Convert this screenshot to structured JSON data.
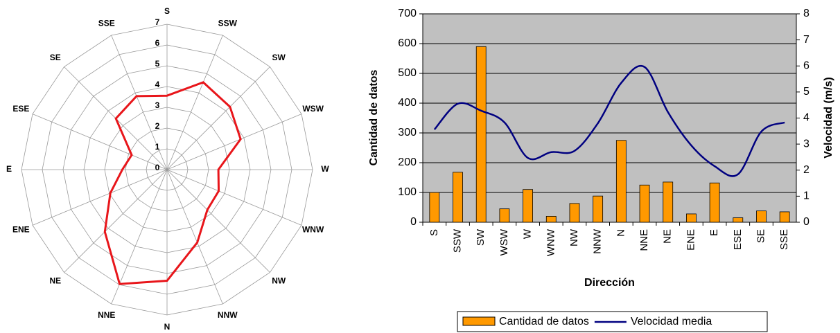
{
  "chart_data": [
    {
      "type": "radar",
      "categories": [
        "S",
        "SSW",
        "SW",
        "WSW",
        "W",
        "WNW",
        "NW",
        "NNW",
        "N",
        "NNE",
        "NE",
        "ENE",
        "E",
        "ESE",
        "SE",
        "SSE"
      ],
      "values": [
        3.56,
        4.55,
        4.28,
        3.83,
        2.47,
        2.69,
        2.74,
        3.8,
        5.35,
        5.96,
        4.23,
        2.95,
        2.15,
        1.84,
        3.48,
        3.83
      ],
      "color": "#e8161b",
      "rlim": [
        0,
        7
      ],
      "rticks": [
        0,
        1,
        2,
        3,
        4,
        5,
        6,
        7
      ]
    },
    {
      "type": "bar",
      "categories": [
        "S",
        "SSW",
        "SW",
        "WSW",
        "W",
        "WNW",
        "NW",
        "NNW",
        "N",
        "NNE",
        "NE",
        "ENE",
        "E",
        "ESE",
        "SE",
        "SSE"
      ],
      "xlabel": "Dirección",
      "ylabel": "Cantidad de datos",
      "y2label": "Velocidad (m/s)",
      "series": [
        {
          "name": "Cantidad de datos",
          "type": "bar",
          "color": "#ff9900",
          "values": [
            100,
            168,
            590,
            45,
            110,
            20,
            63,
            88,
            275,
            125,
            135,
            28,
            132,
            15,
            38,
            35
          ]
        },
        {
          "name": "Velocidad media",
          "type": "line",
          "axis": "y2",
          "color": "#000080",
          "values": [
            3.56,
            4.55,
            4.28,
            3.83,
            2.47,
            2.69,
            2.74,
            3.8,
            5.35,
            5.96,
            4.23,
            2.95,
            2.15,
            1.84,
            3.48,
            3.83
          ]
        }
      ],
      "ylim": [
        0,
        700
      ],
      "yticks": [
        0,
        100,
        200,
        300,
        400,
        500,
        600,
        700
      ],
      "y2lim": [
        0,
        8
      ],
      "y2ticks": [
        0,
        1,
        2,
        3,
        4,
        5,
        6,
        7,
        8
      ],
      "grid": true,
      "legend": "bottom"
    }
  ]
}
